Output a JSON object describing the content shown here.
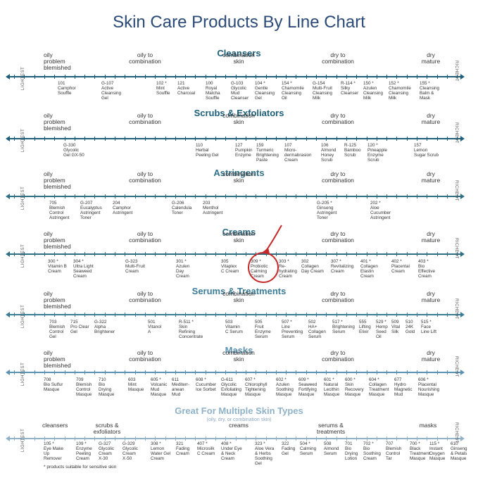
{
  "title": "Skin Care Products By Line Chart",
  "axis_left_label": "LIGHTEST",
  "axis_right_label": "RICHEST",
  "footnote": "* products suitable for sensitive skin",
  "sections": [
    {
      "name": "Cleansers",
      "color": "#1e5f7a",
      "skin_labels": [
        "oily\nproblem\nblemished",
        "oily to\ncombination",
        "combination\nskin",
        "dry to\ncombination",
        "dry\nmature"
      ],
      "products": [
        "101\nCamphor\nSouffle",
        "G-107\nActive\nCleansing\nGel",
        "102 *\nMint\nSouffle",
        "121\nActive\nCharcoal",
        "100\nRoyal\nMatcha\nSouffle",
        "G-103\nGlycolic\nMud\nCleanser",
        "104 *\nGentle\nCleansing\nGel",
        "154 *\nChamomile\nCleansing\nOil",
        "G-154\nMulti-Fruit\nCleansing\nMilk",
        "R-114 *\nSilky\nCleanser",
        "150 *\nAzulen\nCleansing\nMilk",
        "152 *\nChamomile\nCleansing\nMilk",
        "155 *\nCleansing\nBalm &\nMask"
      ]
    },
    {
      "name": "Scrubs & Exfoliators",
      "color": "#1e5f7a",
      "skin_labels": [
        "oily\nproblem\nblemished",
        "oily to\ncombination",
        "combination\nskin",
        "dry to\ncombination",
        "dry\nmature"
      ],
      "products": [
        "G-330\nGlycolic\nGel GX-50",
        "110\nHerbal\nPeeling Gel",
        "127\nPumpkin\nEnzyme",
        "159\nTurmeric\nBrightening\nPaste",
        "107\nMicro-\ndermabrasion\nCream",
        "106\nAlmond\nHoney\nScrub",
        "R-125\nBamboo\nScrub",
        "120 *\nPineapple\nEnzyme\nScrub",
        "157\nLemon\nSugar Scrub"
      ]
    },
    {
      "name": "Astringents",
      "color": "#2f6f86",
      "skin_labels": [
        "oily\nproblem\nblemished",
        "oily to\ncombination",
        "combination\nskin",
        "dry to\ncombination",
        "dry\nmature"
      ],
      "products": [
        "705\nBlemish\nControl\nAstringent",
        "G-207\nEucalyptus\nAstringent\nToner",
        "204\nCamphor\nAstringent",
        "G-206\nCalendula\nToner",
        "203\nMenthol\nAstringent",
        "G-205 *\nGinseng\nAstringent\nToner",
        "202 *\nAloe\nCucumber\nAstringent"
      ]
    },
    {
      "name": "Creams",
      "color": "#2f6f86",
      "skin_labels": [
        "oily\nproblem\nblemished",
        "oily to\ncombination",
        "combination\nskin",
        "dry to\ncombination",
        "dry\nmature"
      ],
      "products": [
        "300 *\nVitamin B\nCream",
        "304 *\nUltra Light\nSeaweed\nCream",
        "G-323\nMulti-Fruit\nCream",
        "301 *\nAzulen\nDay\nCream",
        "305\nVitaplex\nC Cream",
        "309 *\nProbiotic\nCalming\nCream",
        "303 *\nRe-\nhydrating\nCream",
        "302\nCollagen\nDay Cream",
        "307 *\nRevitalizing\nCream",
        "401 *\nCollagen\nElastin\nCream",
        "402 *\nPlacental\nCream",
        "403 *\nBio\nEffective\nCream"
      ]
    },
    {
      "name": "Serums & Treatments",
      "color": "#3b7d97",
      "skin_labels": [
        "oily\nproblem\nblemished",
        "oily to\ncombination",
        "combination\nskin",
        "dry to\ncombination",
        "dry\nmature"
      ],
      "products": [
        "703\nBlemish\nControl\nGel",
        "715\nPro Clear\nGel",
        "G-322\nAlpha\nBrightener",
        "501\nVitanol\nA",
        "R-511 *\nSkin\nRefining\nConcentrate",
        "503\nVitamin\nC Serum",
        "505\nFruit\nEnzyme\nSerum",
        "507 *\nLine\nPreventing\nSerum",
        "502\nHA+\nCollagen\nSerum",
        "517 *\nBrightening\nSerum",
        "555\nLifting\nElixir",
        "529 *\nHemp\nSeed\nOil",
        "509\nVital\nSilk",
        "510\n24K\nGold",
        "515 *\nFace\nLine Lift"
      ]
    },
    {
      "name": "Masks",
      "color": "#5a93b3",
      "skin_labels": [
        "oily\nproblem\nblemished",
        "oily to\ncombination",
        "combination\nskin",
        "dry to\ncombination",
        "dry\nmature"
      ],
      "products": [
        "708\nBio Sulfur\nMasque",
        "709\nBlemish\nControl\nMasque",
        "710\nBio\nDrying\nMasque",
        "603\nMint\nMasque",
        "605 *\nVolcanic\nMud\nMasque",
        "611\nMediterr-\nanean\nMud",
        "608 *\nCucumber\nIce Sorbet",
        "G-611\nGlycolic\nExfoliating\nMasque",
        "607 *\nChlorophyll\nTightening\nMasque",
        "602 *\nAzulen\nSoothing\nMasque",
        "609 *\nSeaweed\nFortifying\nMasque",
        "601 *\nNatural\nLecithin\nMasque",
        "600 *\nSkin\nRecovery\nMasque",
        "604 *\nCollagen\nTreatment\nMasque",
        "677\nHydro\nMagnetic\nMud",
        "606 *\nPlacental\nNourishing\nMasque"
      ]
    },
    {
      "name": "Great For Multiple Skin Types",
      "subtitle": "(oily, dry, or combination skin)",
      "color": "#8fb2c9",
      "skin_labels": [
        "cleansers",
        "scrubs &\nexfoliators",
        "creams",
        "serums &\ntreatments",
        "masks"
      ],
      "products": [
        "105 *\nEye Make\nUp\nRemover",
        "109 *\nEnzyme\nPeeling\nCream",
        "G-327\nGlycolic\nCream\nX-30",
        "G-329\nGlycolic\nCream\nX-50",
        "308 *\nLemon\nWater Gel\nCream",
        "321\nFading\nCream",
        "407 *\nMicrosilk\nC Cream",
        "408 *\nUnder Eye\n& Neck\nCream",
        "323 *\nAloe Vera\n& Herbs\nSoothing\nGel",
        "322\nFading\nGel",
        "504 *\nCalming\nSerum",
        "508\nAlmond\nSerum",
        "701\nBio\nDrying\nLotion",
        "702 *\nBio\nSoothing\nCream",
        "707\nBlemish\nControl\nTar",
        "700 *\nBlack\nTreatment\nMasque",
        "115 *\nInstant\nOxygen\nMasque",
        "610\nGinseng\n& Petals\nMasque"
      ]
    }
  ]
}
